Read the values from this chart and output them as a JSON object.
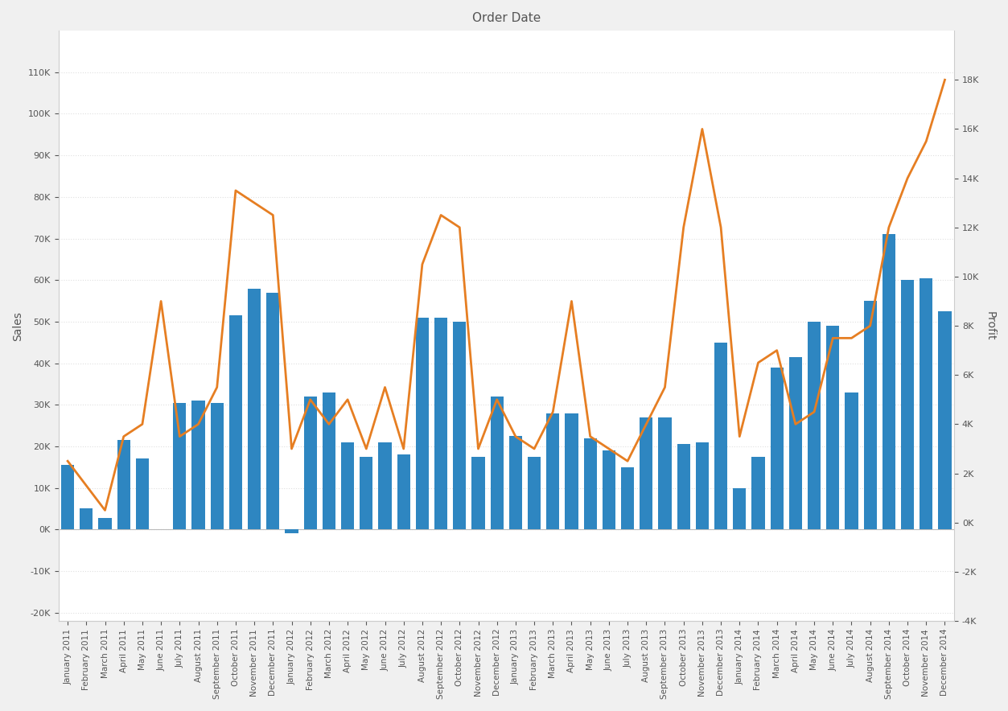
{
  "title": "Order Date",
  "xlabel_sales": "Sales",
  "ylabel_profit": "Profit",
  "background_color": "#ffffff",
  "bar_color": "#2E86C1",
  "line_color": "#E67E22",
  "categories": [
    "January 2011",
    "February 2011",
    "March 2011",
    "April 2011",
    "May 2011",
    "June 2011",
    "July 2011",
    "August 2011",
    "September 2011",
    "October 2011",
    "November 2011",
    "December 2011",
    "January 2012",
    "February 2012",
    "March 2012",
    "April 2012",
    "May 2012",
    "June 2012",
    "July 2012",
    "August 2012",
    "September 2012",
    "October 2012",
    "November 2012",
    "December 2012",
    "January 2013",
    "February 2013",
    "March 2013",
    "April 2013",
    "May 2013",
    "June 2013",
    "July 2013",
    "August 2013",
    "September 2013",
    "October 2013",
    "November 2013",
    "December 2013",
    "January 2014",
    "February 2014",
    "March 2014",
    "April 2014",
    "May 2014",
    "June 2014",
    "July 2014",
    "August 2014",
    "September 2014",
    "October 2014",
    "November 2014",
    "December 2014"
  ],
  "sales": [
    15500,
    5000,
    2800,
    21500,
    17000,
    0,
    30500,
    31000,
    30500,
    51500,
    58000,
    57000,
    -1000,
    32000,
    33000,
    21000,
    17500,
    21000,
    18000,
    51000,
    51000,
    50000,
    17500,
    32000,
    22500,
    17500,
    28000,
    28000,
    22000,
    19000,
    15000,
    27000,
    27000,
    20500,
    21000,
    45000,
    10000,
    17500,
    39000,
    41500,
    50000,
    49000,
    33000,
    55000,
    71000,
    60000,
    60500,
    52500
  ],
  "profit": [
    2500,
    1500,
    500,
    3500,
    4000,
    9000,
    3500,
    4000,
    5500,
    13500,
    13000,
    12500,
    3000,
    5000,
    4000,
    5000,
    3000,
    5500,
    3000,
    10500,
    12500,
    12000,
    3000,
    5000,
    3500,
    3000,
    4500,
    9000,
    3500,
    3000,
    2500,
    4000,
    5500,
    12000,
    16000,
    12000,
    3500,
    6500,
    7000,
    4000,
    4500,
    7500,
    7500,
    8000,
    12000,
    14000,
    15500,
    18000
  ],
  "sales_ylim": [
    -22000,
    120000
  ],
  "profit_ylim": [
    -4000,
    20000
  ],
  "sales_yticks": [
    -20000,
    -10000,
    0,
    10000,
    20000,
    30000,
    40000,
    50000,
    60000,
    70000,
    80000,
    90000,
    100000,
    110000
  ],
  "profit_yticks": [
    -4000,
    -2000,
    0,
    2000,
    4000,
    6000,
    8000,
    10000,
    12000,
    14000,
    16000,
    18000
  ],
  "panel_bg": "#f8f8f8",
  "grid_color": "#e0e0e0"
}
